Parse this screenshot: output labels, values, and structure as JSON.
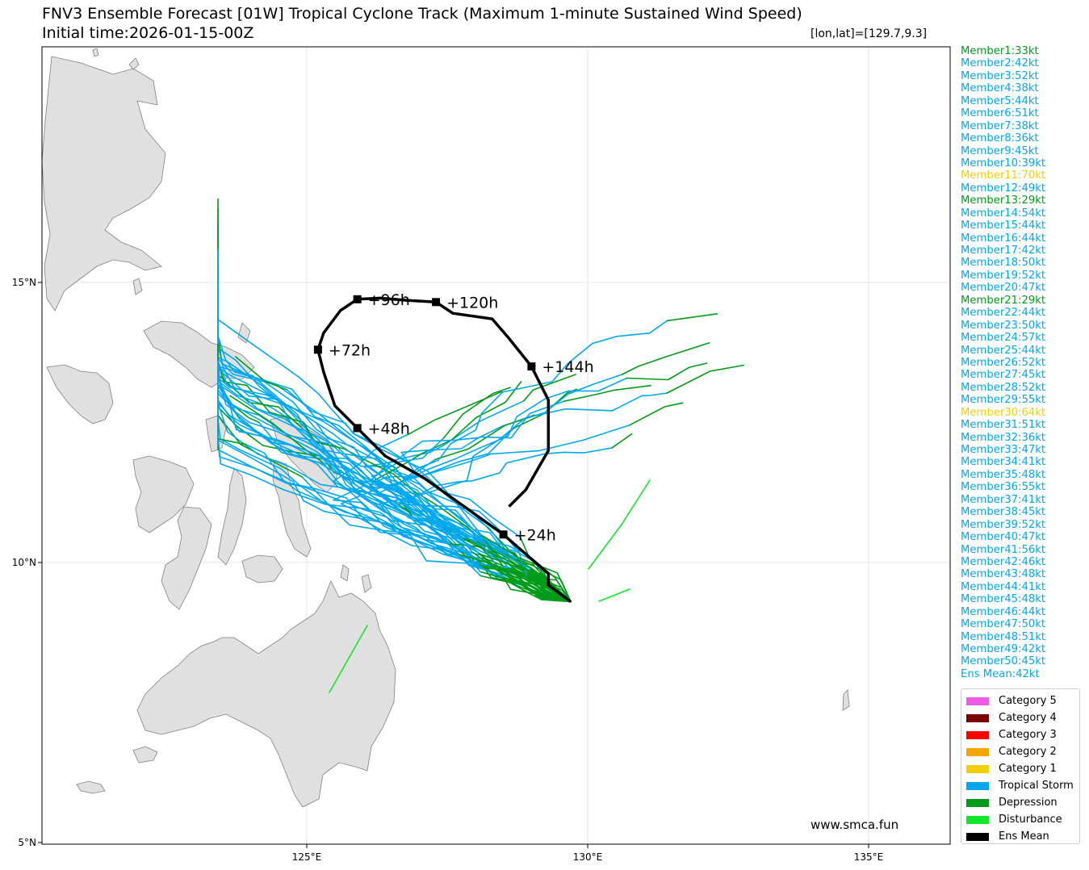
{
  "title_line1": "FNV3 Ensemble Forecast [01W] Tropical Cyclone Track (Maximum 1-minute Sustained Wind Speed)",
  "title_line2": "Initial time:2026-01-15-00Z",
  "lonlat_label": "[lon,lat]=[129.7,9.3]",
  "website": "www.smca.fun",
  "colors": {
    "Category 5": "#ee5ce6",
    "Category 4": "#7b0000",
    "Category 3": "#ff0000",
    "Category 2": "#f5a400",
    "Category 1": "#f2cf00",
    "Tropical Storm": "#00a8f0",
    "Depression": "#009c18",
    "Disturbance": "#10e828",
    "Ens Mean": "#000000",
    "land": "#e0e0e0",
    "coast": "#808080",
    "grid": "#e6e6e6"
  },
  "axes": {
    "x_ticks": [
      "125°E",
      "130°E",
      "135°E"
    ],
    "y_ticks": [
      "15°N",
      "10°N",
      "5°N"
    ]
  },
  "members": [
    {
      "label": "Member1:33kt",
      "category": "Depression"
    },
    {
      "label": "Member2:42kt",
      "category": "Tropical Storm"
    },
    {
      "label": "Member3:52kt",
      "category": "Tropical Storm"
    },
    {
      "label": "Member4:38kt",
      "category": "Tropical Storm"
    },
    {
      "label": "Member5:44kt",
      "category": "Tropical Storm"
    },
    {
      "label": "Member6:51kt",
      "category": "Tropical Storm"
    },
    {
      "label": "Member7:38kt",
      "category": "Tropical Storm"
    },
    {
      "label": "Member8:36kt",
      "category": "Tropical Storm"
    },
    {
      "label": "Member9:45kt",
      "category": "Tropical Storm"
    },
    {
      "label": "Member10:39kt",
      "category": "Tropical Storm"
    },
    {
      "label": "Member11:70kt",
      "category": "Category 1"
    },
    {
      "label": "Member12:49kt",
      "category": "Tropical Storm"
    },
    {
      "label": "Member13:29kt",
      "category": "Depression"
    },
    {
      "label": "Member14:54kt",
      "category": "Tropical Storm"
    },
    {
      "label": "Member15:44kt",
      "category": "Tropical Storm"
    },
    {
      "label": "Member16:44kt",
      "category": "Tropical Storm"
    },
    {
      "label": "Member17:42kt",
      "category": "Tropical Storm"
    },
    {
      "label": "Member18:50kt",
      "category": "Tropical Storm"
    },
    {
      "label": "Member19:52kt",
      "category": "Tropical Storm"
    },
    {
      "label": "Member20:47kt",
      "category": "Tropical Storm"
    },
    {
      "label": "Member21:29kt",
      "category": "Depression"
    },
    {
      "label": "Member22:44kt",
      "category": "Tropical Storm"
    },
    {
      "label": "Member23:50kt",
      "category": "Tropical Storm"
    },
    {
      "label": "Member24:57kt",
      "category": "Tropical Storm"
    },
    {
      "label": "Member25:44kt",
      "category": "Tropical Storm"
    },
    {
      "label": "Member26:52kt",
      "category": "Tropical Storm"
    },
    {
      "label": "Member27:45kt",
      "category": "Tropical Storm"
    },
    {
      "label": "Member28:52kt",
      "category": "Tropical Storm"
    },
    {
      "label": "Member29:55kt",
      "category": "Tropical Storm"
    },
    {
      "label": "Member30:64kt",
      "category": "Category 1"
    },
    {
      "label": "Member31:51kt",
      "category": "Tropical Storm"
    },
    {
      "label": "Member32:36kt",
      "category": "Tropical Storm"
    },
    {
      "label": "Member33:47kt",
      "category": "Tropical Storm"
    },
    {
      "label": "Member34:41kt",
      "category": "Tropical Storm"
    },
    {
      "label": "Member35:48kt",
      "category": "Tropical Storm"
    },
    {
      "label": "Member36:55kt",
      "category": "Tropical Storm"
    },
    {
      "label": "Member37:41kt",
      "category": "Tropical Storm"
    },
    {
      "label": "Member38:45kt",
      "category": "Tropical Storm"
    },
    {
      "label": "Member39:52kt",
      "category": "Tropical Storm"
    },
    {
      "label": "Member40:47kt",
      "category": "Tropical Storm"
    },
    {
      "label": "Member41:56kt",
      "category": "Tropical Storm"
    },
    {
      "label": "Member42:46kt",
      "category": "Tropical Storm"
    },
    {
      "label": "Member43:48kt",
      "category": "Tropical Storm"
    },
    {
      "label": "Member44:41kt",
      "category": "Tropical Storm"
    },
    {
      "label": "Member45:48kt",
      "category": "Tropical Storm"
    },
    {
      "label": "Member46:44kt",
      "category": "Tropical Storm"
    },
    {
      "label": "Member47:50kt",
      "category": "Tropical Storm"
    },
    {
      "label": "Member48:51kt",
      "category": "Tropical Storm"
    },
    {
      "label": "Member49:42kt",
      "category": "Tropical Storm"
    },
    {
      "label": "Member50:45kt",
      "category": "Tropical Storm"
    },
    {
      "label": "Ens Mean:42kt",
      "category": "Tropical Storm"
    }
  ],
  "legend": [
    "Category 5",
    "Category 4",
    "Category 3",
    "Category 2",
    "Category 1",
    "Tropical Storm",
    "Depression",
    "Disturbance",
    "Ens Mean"
  ],
  "ens_mean_track": [
    [
      129.7,
      9.3
    ],
    [
      129.3,
      9.6
    ],
    [
      129.3,
      9.8
    ],
    [
      128.9,
      10.15
    ],
    [
      128.5,
      10.5
    ],
    [
      127.8,
      11.0
    ],
    [
      127.1,
      11.5
    ],
    [
      126.4,
      11.9
    ],
    [
      125.9,
      12.4
    ],
    [
      125.5,
      12.8
    ],
    [
      125.3,
      13.4
    ],
    [
      125.2,
      13.8
    ],
    [
      125.3,
      14.1
    ],
    [
      125.6,
      14.5
    ],
    [
      125.9,
      14.7
    ],
    [
      126.3,
      14.72
    ],
    [
      126.8,
      14.68
    ],
    [
      127.3,
      14.65
    ],
    [
      127.6,
      14.45
    ],
    [
      128.3,
      14.35
    ],
    [
      128.6,
      14.0
    ],
    [
      129.0,
      13.5
    ],
    [
      129.3,
      12.9
    ],
    [
      129.3,
      12.0
    ],
    [
      128.9,
      11.3
    ],
    [
      128.6,
      11.0
    ]
  ],
  "ens_mean_points": [
    {
      "label": "+24h",
      "lon": 128.5,
      "lat": 10.5
    },
    {
      "label": "+48h",
      "lon": 125.9,
      "lat": 12.4
    },
    {
      "label": "+72h",
      "lon": 125.2,
      "lat": 13.8
    },
    {
      "label": "+96h",
      "lon": 125.9,
      "lat": 14.7
    },
    {
      "label": "+120h",
      "lon": 127.3,
      "lat": 14.65
    },
    {
      "label": "+144h",
      "lon": 129.0,
      "lat": 13.5
    }
  ]
}
